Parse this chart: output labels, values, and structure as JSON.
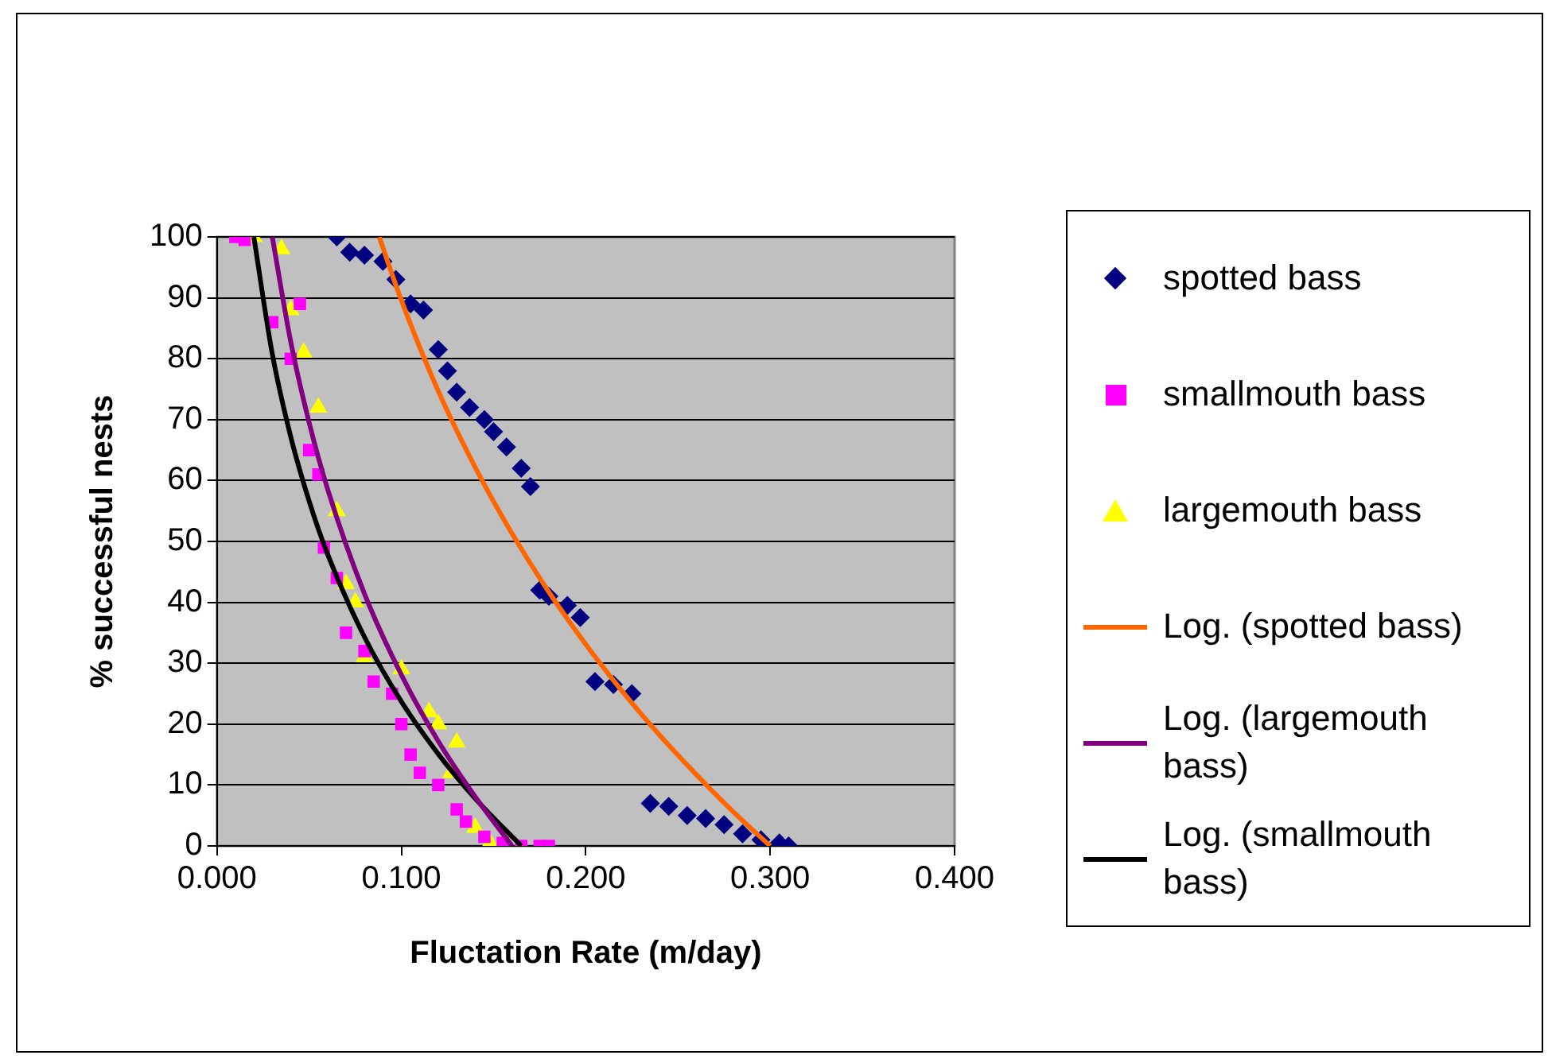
{
  "chart_data": {
    "type": "scatter",
    "xlabel": "Fluctation Rate (m/day)",
    "ylabel": "% successful nests",
    "xlim": [
      0,
      0.4
    ],
    "xticks": [
      {
        "value": 0,
        "label": "0.000"
      },
      {
        "value": 0.1,
        "label": "0.100"
      },
      {
        "value": 0.2,
        "label": "0.200"
      },
      {
        "value": 0.3,
        "label": "0.300"
      },
      {
        "value": 0.4,
        "label": "0.400"
      }
    ],
    "ylim": [
      0,
      100
    ],
    "yticks": [
      0,
      10,
      20,
      30,
      40,
      50,
      60,
      70,
      80,
      90,
      100
    ],
    "grid": "y",
    "legend": "right",
    "series": [
      {
        "name": "spotted bass",
        "type": "scatter",
        "marker": "diamond",
        "color": "#000080",
        "x": [
          0.065,
          0.072,
          0.08,
          0.09,
          0.097,
          0.105,
          0.112,
          0.12,
          0.125,
          0.13,
          0.137,
          0.145,
          0.15,
          0.157,
          0.165,
          0.17,
          0.175,
          0.18,
          0.19,
          0.197,
          0.205,
          0.215,
          0.225,
          0.235,
          0.245,
          0.255,
          0.265,
          0.275,
          0.285,
          0.295,
          0.305,
          0.31
        ],
        "values": [
          100,
          97.5,
          97,
          96,
          93,
          89,
          88,
          81.5,
          78,
          74.5,
          72,
          70,
          68,
          65.5,
          62,
          59,
          42,
          41,
          39.5,
          37.5,
          27,
          26.5,
          25,
          7,
          6.5,
          5,
          4.5,
          3.5,
          2,
          1,
          0.5,
          0
        ]
      },
      {
        "name": "smallmouth bass",
        "type": "scatter",
        "marker": "square",
        "color": "#ff00ff",
        "x": [
          0.01,
          0.015,
          0.03,
          0.04,
          0.045,
          0.05,
          0.055,
          0.058,
          0.065,
          0.07,
          0.08,
          0.085,
          0.095,
          0.1,
          0.105,
          0.11,
          0.12,
          0.13,
          0.135,
          0.145,
          0.155,
          0.165,
          0.175,
          0.18
        ],
        "values": [
          100,
          99.5,
          86,
          80,
          89,
          65,
          61,
          49,
          44,
          35,
          32,
          27,
          25,
          20,
          15,
          12,
          10,
          6,
          4,
          1.5,
          0.5,
          0,
          0,
          0
        ]
      },
      {
        "name": "largemouth bass",
        "type": "scatter",
        "marker": "triangle",
        "color": "#ffff00",
        "x": [
          0.02,
          0.035,
          0.04,
          0.047,
          0.055,
          0.065,
          0.07,
          0.075,
          0.08,
          0.1,
          0.115,
          0.12,
          0.13,
          0.127,
          0.14,
          0.148
        ],
        "values": [
          100,
          98,
          88,
          81,
          72,
          55,
          43,
          40,
          31,
          29,
          22,
          20,
          17,
          12,
          3,
          0.5
        ]
      },
      {
        "name": "Log. (spotted bass)",
        "type": "line",
        "marker": "none",
        "color": "#ff6600",
        "x": [
          0.088,
          0.1,
          0.12,
          0.14,
          0.16,
          0.18,
          0.2,
          0.22,
          0.24,
          0.26,
          0.28,
          0.3
        ],
        "values": [
          100,
          89.6,
          74.7,
          62.2,
          51.3,
          41.7,
          33.1,
          25.3,
          18.2,
          11.7,
          5.6,
          0
        ]
      },
      {
        "name": "Log. (largemouth bass)",
        "type": "line",
        "marker": "none",
        "color": "#800080",
        "x": [
          0.03,
          0.04,
          0.05,
          0.06,
          0.08,
          0.1,
          0.12,
          0.14,
          0.16
        ],
        "values": [
          100,
          82.8,
          69.5,
          58.6,
          41.4,
          28.1,
          17.2,
          8.1,
          0
        ]
      },
      {
        "name": "Log. (smallmouth bass)",
        "type": "line",
        "marker": "none",
        "color": "#000000",
        "x": [
          0.02,
          0.03,
          0.04,
          0.05,
          0.06,
          0.08,
          0.1,
          0.12,
          0.14,
          0.165
        ],
        "values": [
          100,
          80.8,
          67.2,
          56.6,
          47.9,
          34.3,
          23.7,
          15.1,
          7.8,
          0
        ]
      }
    ]
  }
}
